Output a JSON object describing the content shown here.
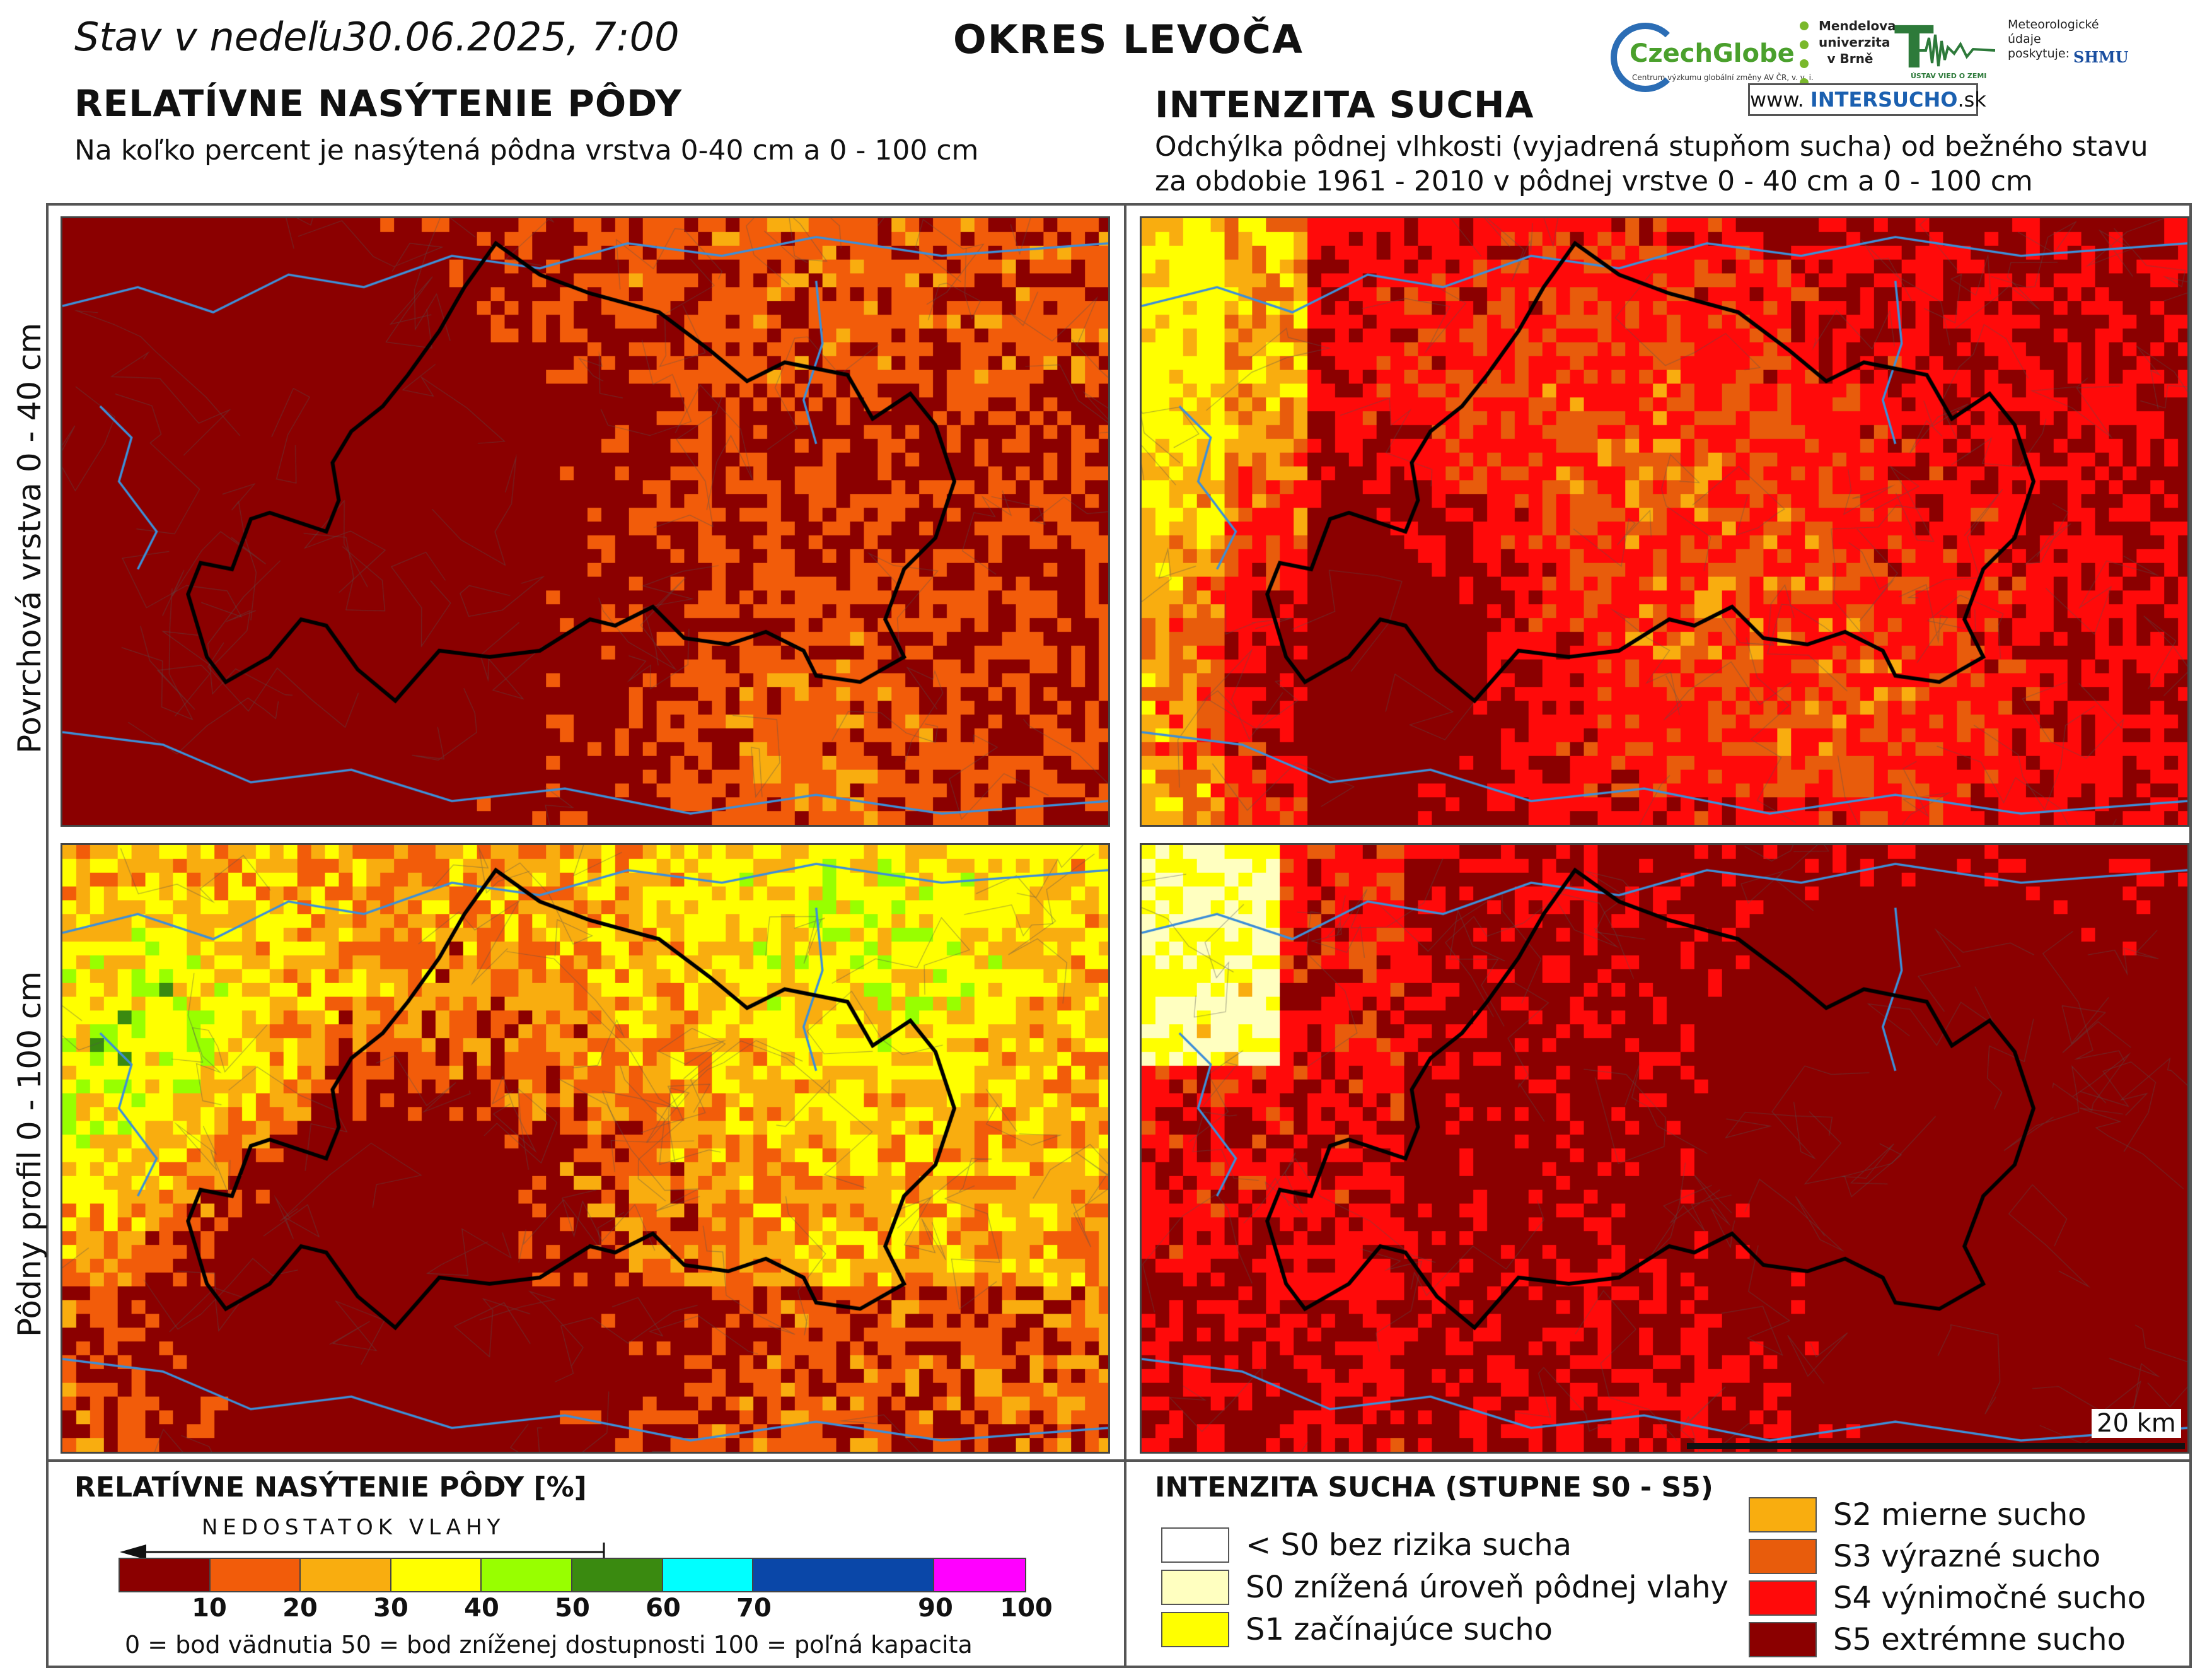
{
  "header": {
    "date_text": "Stav v nedeľu30.06.2025, 7:00",
    "district": "OKRES  LEVOČA"
  },
  "left_section": {
    "title": "RELATÍVNE NASÝTENIE PÔDY",
    "subtitle": "Na koľko percent je nasýtená pôdna vrstva 0-40 cm a 0 - 100 cm"
  },
  "right_section": {
    "title": "INTENZITA SUCHA",
    "subtitle_line1": "Odchýlka pôdnej vlhkosti (vyjadrená stupňom sucha) od bežného stavu",
    "subtitle_line2": "za obdobie 1961 - 2010 v pôdnej vrstve 0 - 40 cm a 0 - 100 cm"
  },
  "logos": {
    "czechglobe_name": "CzechGlobe",
    "czechglobe_small": "Centrum výzkumu globální změny AV ČR, v. v. i.",
    "mendel_text": "Mendelova univerzita v Brně",
    "ustav_caption": "ÚSTAV VIED O ZEMI",
    "shmu_text": "Meteorologické údaje poskytuje:",
    "shmu_mark": "SHMU",
    "intersucho_prefix": "www.",
    "intersucho_name": "INTERSUCHO",
    "intersucho_suffix": ".sk"
  },
  "row_labels": {
    "top": "Povrchová vrstva 0 - 40 cm",
    "bottom": "Pôdny profil 0 - 100 cm"
  },
  "saturation_legend": {
    "title": "RELATÍVNE NASÝTENIE PÔDY [%]",
    "arrow_text": "NEDOSTATOK VLAHY",
    "colors": [
      "#8b0000",
      "#f25c0a",
      "#f9ad0f",
      "#ffff00",
      "#98ff00",
      "#3a8a10",
      "#00ffff",
      "#0a47a8",
      "#ff00ff"
    ],
    "boundaries": [
      0,
      10,
      20,
      30,
      40,
      50,
      60,
      70,
      90,
      100
    ],
    "tick_labels": [
      "10",
      "20",
      "30",
      "40",
      "50",
      "60",
      "70",
      "90",
      "100"
    ],
    "note": "0 = bod vädnutia  50 = bod zníženej dostupnosti  100 = poľná kapacita"
  },
  "drought_legend": {
    "title": "INTENZITA SUCHA (STUPNE S0 - S5)",
    "items": [
      {
        "label": "< S0 bez rizika sucha",
        "color": "#ffffff"
      },
      {
        "label": "S0 znížená úroveň pôdnej vlahy",
        "color": "#ffffc0"
      },
      {
        "label": "S1 začínajúce sucho",
        "color": "#ffff00"
      },
      {
        "label": "S2 mierne sucho",
        "color": "#f9ad0f"
      },
      {
        "label": "S3 výrazné sucho",
        "color": "#e85c0c"
      },
      {
        "label": "S4 výnimočné sucho",
        "color": "#ff0a0a"
      },
      {
        "label": "S5 extrémne sucho",
        "color": "#8b0000"
      }
    ]
  },
  "scale": {
    "label": "20 km"
  },
  "map_colors": {
    "river": "#3d8fd8",
    "boundary": "#000000",
    "minor_boundary": "#555555"
  }
}
